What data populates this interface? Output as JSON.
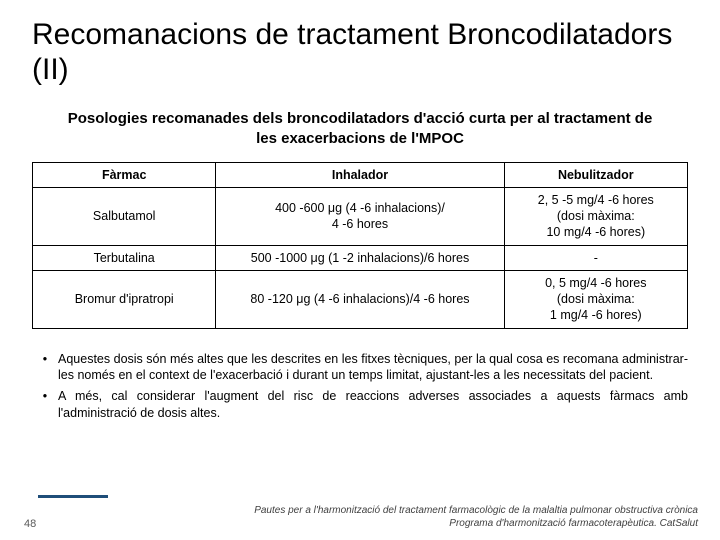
{
  "title": "Recomanacions de tractament Broncodilatadors (II)",
  "subtitle": "Posologies recomanades dels broncodilatadors d'acció curta per al tractament de les exacerbacions de l'MPOC",
  "table": {
    "headers": {
      "c1": "Fàrmac",
      "c2": "Inhalador",
      "c3": "Nebulitzador"
    },
    "rows": [
      {
        "c1": "Salbutamol",
        "c2": "400 -600 μg (4 -6 inhalacions)/\n4 -6 hores",
        "c3": "2, 5 -5 mg/4 -6 hores\n(dosi màxima:\n10 mg/4 -6 hores)"
      },
      {
        "c1": "Terbutalina",
        "c2": "500 -1000 μg (1 -2 inhalacions)/6 hores",
        "c3": "-"
      },
      {
        "c1": "Bromur d'ipratropi",
        "c2": "80 -120 μg (4 -6 inhalacions)/4 -6 hores",
        "c3": "0, 5 mg/4 -6 hores\n(dosi màxima:\n1 mg/4 -6 hores)"
      }
    ]
  },
  "notes": [
    "Aquestes dosis són més altes que les descrites en les fitxes tècniques, per la qual cosa es recomana administrar-les només en el context de l'exacerbació i durant un temps limitat, ajustant-les a les necessitats del pacient.",
    "A més, cal considerar l'augment del risc de reaccions adverses associades a aquests fàrmacs amb l'administració de dosis altes."
  ],
  "pageNumber": "48",
  "citation1": "Pautes per a l'harmonització del tractament farmacològic de la malaltia pulmonar obstructiva crònica",
  "citation2": "Programa d'harmonització farmacoterapèutica. CatSalut",
  "colors": {
    "accent": "#1f4e79"
  }
}
